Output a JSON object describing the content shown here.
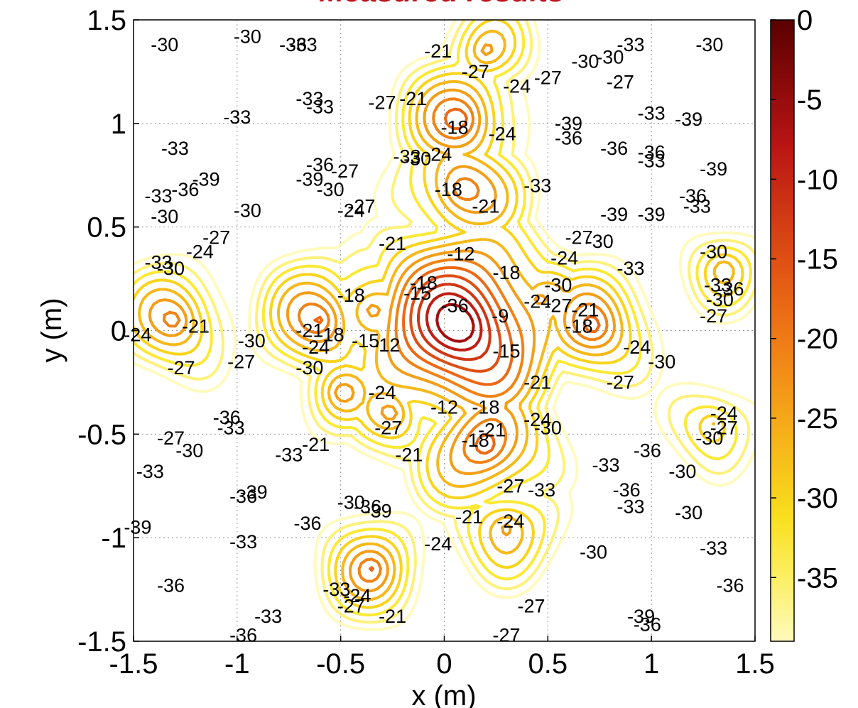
{
  "chart_data": {
    "type": "contour",
    "title": "Measured results",
    "xlabel": "x (m)",
    "ylabel": "y (m)",
    "xlim": [
      -1.5,
      1.5
    ],
    "ylim": [
      -1.5,
      1.5
    ],
    "xticks": [
      -1.5,
      -1,
      -0.5,
      0,
      0.5,
      1,
      1.5
    ],
    "yticks": [
      -1.5,
      -1,
      -0.5,
      0,
      0.5,
      1,
      1.5
    ],
    "xtick_labels": [
      "-1.5",
      "-1",
      "-0.5",
      "0",
      "0.5",
      "1",
      "1.5"
    ],
    "ytick_labels": [
      "-1.5",
      "-1",
      "-0.5",
      "0",
      "0.5",
      "1",
      "1.5"
    ],
    "grid": true,
    "colorbar": {
      "range": [
        -39,
        0
      ],
      "ticks": [
        0,
        -5,
        -10,
        -15,
        -20,
        -25,
        -30,
        -35
      ],
      "tick_labels": [
        "0",
        "-5",
        "-10",
        "-15",
        "-20",
        "-25",
        "-30",
        "-35"
      ],
      "colormap": "hot"
    },
    "levels": [
      -39,
      -36,
      -33,
      -30,
      -27,
      -24,
      -21,
      -18,
      -15,
      -12,
      -9,
      -6
    ],
    "sources": [
      {
        "x": 0.08,
        "y": 0.02,
        "peak": -2
      },
      {
        "x": 0.2,
        "y": -0.56,
        "peak": -15
      },
      {
        "x": 0.08,
        "y": 0.68,
        "peak": -17
      },
      {
        "x": 0.08,
        "y": 1.02,
        "peak": -17
      },
      {
        "x": -0.35,
        "y": 0.1,
        "peak": -19
      },
      {
        "x": -0.6,
        "y": 0.05,
        "peak": -18
      },
      {
        "x": 0.72,
        "y": 0.02,
        "peak": -18
      },
      {
        "x": -1.3,
        "y": 0.05,
        "peak": -20
      },
      {
        "x": -0.35,
        "y": -1.15,
        "peak": -21
      },
      {
        "x": 0.3,
        "y": -0.95,
        "peak": -22
      },
      {
        "x": -0.25,
        "y": -0.4,
        "peak": -23
      },
      {
        "x": 0.45,
        "y": 0.15,
        "peak": -22
      },
      {
        "x": -0.5,
        "y": -0.3,
        "peak": -24
      },
      {
        "x": 0.2,
        "y": 1.35,
        "peak": -24
      },
      {
        "x": 1.3,
        "y": -0.45,
        "peak": -25
      },
      {
        "x": 1.35,
        "y": 0.3,
        "peak": -26
      }
    ],
    "contour_labels": [
      {
        "text": "-30",
        "x": -1.35,
        "y": 1.38
      },
      {
        "text": "-30",
        "x": -0.95,
        "y": 1.42
      },
      {
        "text": "-36",
        "x": -0.73,
        "y": 1.38
      },
      {
        "text": "-33",
        "x": -0.68,
        "y": 1.38
      },
      {
        "text": "-21",
        "x": -0.03,
        "y": 1.35
      },
      {
        "text": "-27",
        "x": 0.15,
        "y": 1.25
      },
      {
        "text": "-24",
        "x": 0.35,
        "y": 1.18
      },
      {
        "text": "-27",
        "x": 0.5,
        "y": 1.22
      },
      {
        "text": "-30",
        "x": 0.68,
        "y": 1.3
      },
      {
        "text": "-30",
        "x": 0.8,
        "y": 1.32
      },
      {
        "text": "-33",
        "x": 0.9,
        "y": 1.38
      },
      {
        "text": "-27",
        "x": 0.85,
        "y": 1.2
      },
      {
        "text": "-30",
        "x": 1.28,
        "y": 1.38
      },
      {
        "text": "-33",
        "x": -0.65,
        "y": 1.12
      },
      {
        "text": "-33",
        "x": -0.6,
        "y": 1.08
      },
      {
        "text": "-27",
        "x": -0.3,
        "y": 1.1
      },
      {
        "text": "-21",
        "x": -0.15,
        "y": 1.12
      },
      {
        "text": "-33",
        "x": -1.0,
        "y": 1.03
      },
      {
        "text": "-18",
        "x": 0.05,
        "y": 0.98
      },
      {
        "text": "-24",
        "x": 0.28,
        "y": 0.95
      },
      {
        "text": "-39",
        "x": 0.6,
        "y": 1.0
      },
      {
        "text": "-36",
        "x": 0.6,
        "y": 0.93
      },
      {
        "text": "-33",
        "x": 1.0,
        "y": 1.05
      },
      {
        "text": "-39",
        "x": 1.18,
        "y": 1.02
      },
      {
        "text": "-33",
        "x": -1.3,
        "y": 0.88
      },
      {
        "text": "-36",
        "x": 0.82,
        "y": 0.88
      },
      {
        "text": "-36",
        "x": 1.0,
        "y": 0.86
      },
      {
        "text": "-33",
        "x": 1.0,
        "y": 0.82
      },
      {
        "text": "-39",
        "x": -1.15,
        "y": 0.73
      },
      {
        "text": "-36",
        "x": -1.25,
        "y": 0.68
      },
      {
        "text": "-33",
        "x": -1.38,
        "y": 0.65
      },
      {
        "text": "-36",
        "x": -0.6,
        "y": 0.8
      },
      {
        "text": "-39",
        "x": -0.65,
        "y": 0.73
      },
      {
        "text": "-27",
        "x": -0.48,
        "y": 0.77
      },
      {
        "text": "-30",
        "x": -0.55,
        "y": 0.68
      },
      {
        "text": "-33",
        "x": -0.18,
        "y": 0.84
      },
      {
        "text": "-30",
        "x": -0.13,
        "y": 0.83
      },
      {
        "text": "-24",
        "x": -0.03,
        "y": 0.85
      },
      {
        "text": "-18",
        "x": 0.02,
        "y": 0.68
      },
      {
        "text": "-33",
        "x": 0.45,
        "y": 0.7
      },
      {
        "text": "-39",
        "x": 1.3,
        "y": 0.78
      },
      {
        "text": "-36",
        "x": 1.2,
        "y": 0.65
      },
      {
        "text": "-33",
        "x": 1.22,
        "y": 0.6
      },
      {
        "text": "-30",
        "x": -1.35,
        "y": 0.55
      },
      {
        "text": "-30",
        "x": -0.95,
        "y": 0.58
      },
      {
        "text": "-27",
        "x": -0.4,
        "y": 0.6
      },
      {
        "text": "-24",
        "x": -0.45,
        "y": 0.58
      },
      {
        "text": "-21",
        "x": 0.2,
        "y": 0.6
      },
      {
        "text": "-39",
        "x": 0.82,
        "y": 0.56
      },
      {
        "text": "-39",
        "x": 1.0,
        "y": 0.56
      },
      {
        "text": "-27",
        "x": -1.1,
        "y": 0.45
      },
      {
        "text": "-24",
        "x": -1.18,
        "y": 0.38
      },
      {
        "text": "-21",
        "x": -0.25,
        "y": 0.42
      },
      {
        "text": "-27",
        "x": 0.65,
        "y": 0.45
      },
      {
        "text": "-30",
        "x": 0.75,
        "y": 0.43
      },
      {
        "text": "-12",
        "x": 0.08,
        "y": 0.37
      },
      {
        "text": "-33",
        "x": -1.38,
        "y": 0.33
      },
      {
        "text": "-30",
        "x": -1.32,
        "y": 0.3
      },
      {
        "text": "-24",
        "x": 0.58,
        "y": 0.35
      },
      {
        "text": "-30",
        "x": 1.3,
        "y": 0.38
      },
      {
        "text": "-18",
        "x": 0.3,
        "y": 0.28
      },
      {
        "text": "-33",
        "x": 0.9,
        "y": 0.3
      },
      {
        "text": "-18",
        "x": -0.1,
        "y": 0.23
      },
      {
        "text": "-15",
        "x": -0.13,
        "y": 0.18
      },
      {
        "text": "-30",
        "x": 0.55,
        "y": 0.22
      },
      {
        "text": "-33",
        "x": 1.32,
        "y": 0.22
      },
      {
        "text": "-36",
        "x": 1.38,
        "y": 0.2
      },
      {
        "text": "-30",
        "x": 1.33,
        "y": 0.15
      },
      {
        "text": "-18",
        "x": -0.45,
        "y": 0.17
      },
      {
        "text": "-36",
        "x": 0.05,
        "y": 0.12
      },
      {
        "text": "-24",
        "x": 0.45,
        "y": 0.14
      },
      {
        "text": "-27",
        "x": 0.55,
        "y": 0.12
      },
      {
        "text": "-21",
        "x": 0.68,
        "y": 0.1
      },
      {
        "text": "-27",
        "x": 1.3,
        "y": 0.07
      },
      {
        "text": "-9",
        "x": 0.27,
        "y": 0.07
      },
      {
        "text": "-21",
        "x": -1.2,
        "y": 0.02
      },
      {
        "text": "-24",
        "x": -1.48,
        "y": -0.02
      },
      {
        "text": "-18",
        "x": 0.65,
        "y": 0.02
      },
      {
        "text": "-21",
        "x": -0.65,
        "y": 0.0
      },
      {
        "text": "-18",
        "x": -0.55,
        "y": -0.02
      },
      {
        "text": "-15",
        "x": -0.38,
        "y": -0.05
      },
      {
        "text": "-12",
        "x": -0.28,
        "y": -0.07
      },
      {
        "text": "-30",
        "x": -0.93,
        "y": -0.05
      },
      {
        "text": "-24",
        "x": -0.62,
        "y": -0.08
      },
      {
        "text": "-15",
        "x": 0.3,
        "y": -0.1
      },
      {
        "text": "-27",
        "x": -0.98,
        "y": -0.15
      },
      {
        "text": "-30",
        "x": -0.65,
        "y": -0.18
      },
      {
        "text": "-24",
        "x": 0.93,
        "y": -0.08
      },
      {
        "text": "-30",
        "x": 1.05,
        "y": -0.15
      },
      {
        "text": "-27",
        "x": -1.27,
        "y": -0.18
      },
      {
        "text": "-27",
        "x": 0.85,
        "y": -0.25
      },
      {
        "text": "-21",
        "x": 0.45,
        "y": -0.25
      },
      {
        "text": "-24",
        "x": -0.3,
        "y": -0.3
      },
      {
        "text": "-12",
        "x": 0.0,
        "y": -0.37
      },
      {
        "text": "-18",
        "x": 0.2,
        "y": -0.37
      },
      {
        "text": "-27",
        "x": -0.27,
        "y": -0.47
      },
      {
        "text": "-24",
        "x": 0.45,
        "y": -0.43
      },
      {
        "text": "-30",
        "x": 0.5,
        "y": -0.47
      },
      {
        "text": "-24",
        "x": 1.35,
        "y": -0.4
      },
      {
        "text": "-27",
        "x": 1.35,
        "y": -0.47
      },
      {
        "text": "-30",
        "x": 1.28,
        "y": -0.52
      },
      {
        "text": "-36",
        "x": -1.05,
        "y": -0.42
      },
      {
        "text": "-33",
        "x": -1.03,
        "y": -0.47
      },
      {
        "text": "-18",
        "x": 0.15,
        "y": -0.53
      },
      {
        "text": "-21",
        "x": 0.23,
        "y": -0.48
      },
      {
        "text": "-27",
        "x": -1.32,
        "y": -0.52
      },
      {
        "text": "-30",
        "x": -1.23,
        "y": -0.58
      },
      {
        "text": "-21",
        "x": -0.62,
        "y": -0.55
      },
      {
        "text": "-33",
        "x": -0.75,
        "y": -0.6
      },
      {
        "text": "-21",
        "x": -0.17,
        "y": -0.6
      },
      {
        "text": "-36",
        "x": 0.98,
        "y": -0.58
      },
      {
        "text": "-33",
        "x": 0.78,
        "y": -0.65
      },
      {
        "text": "-30",
        "x": 1.15,
        "y": -0.68
      },
      {
        "text": "-33",
        "x": -1.42,
        "y": -0.68
      },
      {
        "text": "-27",
        "x": 0.32,
        "y": -0.75
      },
      {
        "text": "-33",
        "x": 0.47,
        "y": -0.77
      },
      {
        "text": "-36",
        "x": 0.88,
        "y": -0.77
      },
      {
        "text": "-33",
        "x": 0.9,
        "y": -0.85
      },
      {
        "text": "-36",
        "x": -0.97,
        "y": -0.8
      },
      {
        "text": "-39",
        "x": -0.92,
        "y": -0.78
      },
      {
        "text": "-30",
        "x": -0.45,
        "y": -0.83
      },
      {
        "text": "-36",
        "x": -0.37,
        "y": -0.85
      },
      {
        "text": "-39",
        "x": -0.32,
        "y": -0.87
      },
      {
        "text": "-30",
        "x": 1.18,
        "y": -0.88
      },
      {
        "text": "-21",
        "x": 0.12,
        "y": -0.9
      },
      {
        "text": "-24",
        "x": 0.32,
        "y": -0.92
      },
      {
        "text": "-39",
        "x": -1.48,
        "y": -0.95
      },
      {
        "text": "-36",
        "x": -0.66,
        "y": -0.93
      },
      {
        "text": "-33",
        "x": -0.97,
        "y": -1.02
      },
      {
        "text": "-24",
        "x": -0.03,
        "y": -1.03
      },
      {
        "text": "-30",
        "x": 0.72,
        "y": -1.07
      },
      {
        "text": "-33",
        "x": 1.3,
        "y": -1.05
      },
      {
        "text": "-36",
        "x": -1.32,
        "y": -1.23
      },
      {
        "text": "-36",
        "x": 1.38,
        "y": -1.23
      },
      {
        "text": "-33",
        "x": -0.52,
        "y": -1.25
      },
      {
        "text": "-24",
        "x": -0.42,
        "y": -1.28
      },
      {
        "text": "-27",
        "x": -0.45,
        "y": -1.33
      },
      {
        "text": "-27",
        "x": 0.42,
        "y": -1.33
      },
      {
        "text": "-21",
        "x": -0.25,
        "y": -1.38
      },
      {
        "text": "-33",
        "x": -0.85,
        "y": -1.38
      },
      {
        "text": "-39",
        "x": 0.95,
        "y": -1.38
      },
      {
        "text": "-36",
        "x": 0.98,
        "y": -1.42
      },
      {
        "text": "-36",
        "x": -0.97,
        "y": -1.47
      },
      {
        "text": "-27",
        "x": 0.3,
        "y": -1.47
      }
    ]
  }
}
